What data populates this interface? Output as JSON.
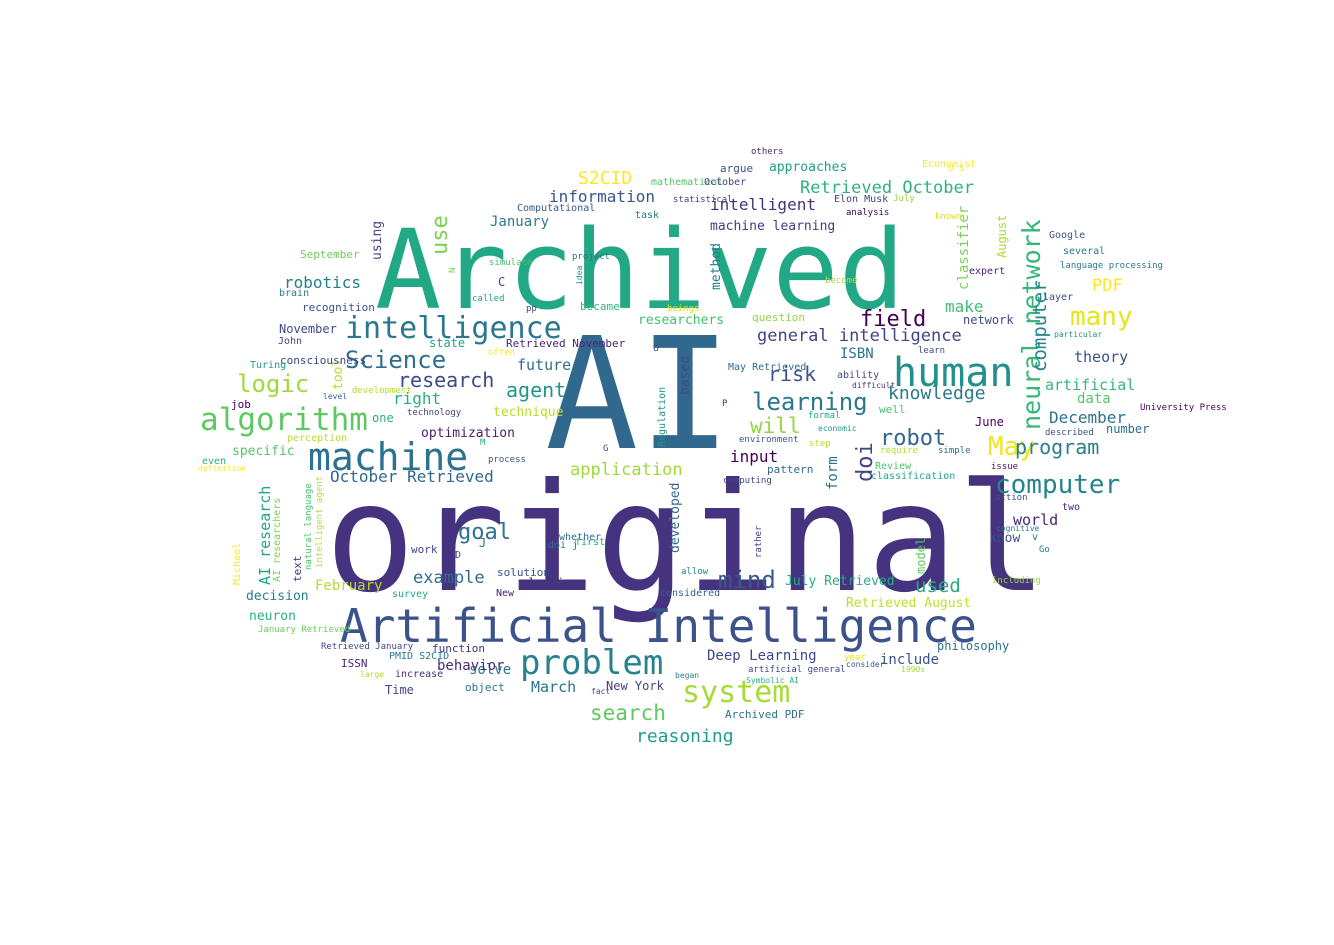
{
  "palette": [
    "#440154",
    "#46327e",
    "#365c8d",
    "#277f8e",
    "#1fa187",
    "#4ac16d",
    "#a0da39",
    "#fde725"
  ],
  "words": [
    {
      "text": "original",
      "color": "#46337f"
    },
    {
      "text": "AI",
      "color": "#31688e"
    },
    {
      "text": "Archived",
      "color": "#22a884"
    },
    {
      "text": "Artificial Intelligence",
      "color": "#3b528b"
    },
    {
      "text": "human",
      "color": "#21918c"
    },
    {
      "text": "machine",
      "color": "#2c728e"
    },
    {
      "text": "intelligence",
      "color": "#2a788e"
    },
    {
      "text": "algorithm",
      "color": "#5ec962"
    },
    {
      "text": "problem",
      "color": "#26828e"
    },
    {
      "text": "system",
      "color": "#a5db36"
    },
    {
      "text": "neural network",
      "color": "#35b779"
    },
    {
      "text": "computer",
      "color": "#25848e"
    },
    {
      "text": "many",
      "color": "#e7e419"
    },
    {
      "text": "logic",
      "color": "#a0da39"
    },
    {
      "text": "learning",
      "color": "#2a788e"
    },
    {
      "text": "Science",
      "color": "#2d708e"
    },
    {
      "text": "robot",
      "color": "#31668e"
    },
    {
      "text": "May",
      "color": "#f1e51d"
    },
    {
      "text": "research",
      "color": "#3e4989"
    },
    {
      "text": "mind",
      "color": "#38598c"
    },
    {
      "text": "goal",
      "color": "#2c738e"
    },
    {
      "text": "field",
      "color": "#440154"
    },
    {
      "text": "use",
      "color": "#7ad151"
    },
    {
      "text": "search",
      "color": "#5ec962"
    },
    {
      "text": "doi",
      "color": "#414487"
    },
    {
      "text": "will",
      "color": "#8fd744"
    },
    {
      "text": "program",
      "color": "#27808e"
    },
    {
      "text": "agent",
      "color": "#1f968b"
    },
    {
      "text": "S2CID",
      "color": "#fde725"
    },
    {
      "text": "robotics",
      "color": "#277f8e"
    },
    {
      "text": "risk",
      "color": "#3b528b"
    },
    {
      "text": "knowledge",
      "color": "#2a788e"
    },
    {
      "text": "October Retrieved",
      "color": "#31688e"
    },
    {
      "text": "reasoning",
      "color": "#1f9e89"
    },
    {
      "text": "Retrieved October",
      "color": "#2db27d"
    },
    {
      "text": "intelligent",
      "color": "#46327e"
    },
    {
      "text": "general intelligence",
      "color": "#414487"
    },
    {
      "text": "information",
      "color": "#39568c"
    },
    {
      "text": "example",
      "color": "#306a8e"
    },
    {
      "text": "PDF",
      "color": "#fde725"
    },
    {
      "text": "application",
      "color": "#a0da39"
    },
    {
      "text": "used",
      "color": "#27ad81"
    },
    {
      "text": "December",
      "color": "#2d718e"
    },
    {
      "text": "computer",
      "color": "#25848e"
    },
    {
      "text": "AI research",
      "color": "#20a386"
    },
    {
      "text": "make",
      "color": "#3fbc73"
    },
    {
      "text": "artificial",
      "color": "#35b779"
    },
    {
      "text": "input",
      "color": "#440154"
    },
    {
      "text": "right",
      "color": "#29af7f"
    },
    {
      "text": "future",
      "color": "#2e6f8e"
    },
    {
      "text": "classifier",
      "color": "#7ad151"
    },
    {
      "text": "ISBN",
      "color": "#2c728e"
    },
    {
      "text": "January",
      "color": "#287d8e"
    },
    {
      "text": "March",
      "color": "#2c738e"
    },
    {
      "text": "Deep Learning",
      "color": "#404688"
    },
    {
      "text": "theory",
      "color": "#3b528b"
    },
    {
      "text": "solve",
      "color": "#2b748e"
    },
    {
      "text": "world",
      "color": "#482576"
    },
    {
      "text": "machine learning",
      "color": "#443983"
    },
    {
      "text": "February",
      "color": "#b2dd2d"
    },
    {
      "text": "New York",
      "color": "#424086"
    },
    {
      "text": "form",
      "color": "#2e6d8e"
    },
    {
      "text": "data",
      "color": "#54c568"
    },
    {
      "text": "July Retrieved",
      "color": "#26ad81"
    },
    {
      "text": "decision",
      "color": "#277f8e"
    },
    {
      "text": "Retrieved August",
      "color": "#c2df23"
    },
    {
      "text": "tool",
      "color": "#b5de2b"
    },
    {
      "text": "based",
      "color": "#3e4a89"
    },
    {
      "text": "developed",
      "color": "#32658e"
    },
    {
      "text": "method",
      "color": "#2a7b8e"
    },
    {
      "text": "optimization",
      "color": "#482173"
    },
    {
      "text": "August",
      "color": "#a8db34"
    },
    {
      "text": "researchers",
      "color": "#44bf70"
    },
    {
      "text": "neuron",
      "color": "#2ab07f"
    },
    {
      "text": "using",
      "color": "#414487"
    },
    {
      "text": "know",
      "color": "#3d4d8a"
    },
    {
      "text": "November",
      "color": "#3e4989"
    },
    {
      "text": "specific",
      "color": "#52c569"
    },
    {
      "text": "state",
      "color": "#1fa187"
    },
    {
      "text": "June",
      "color": "#440154"
    },
    {
      "text": "number",
      "color": "#2e6e8e"
    },
    {
      "text": "network",
      "color": "#3e4a89"
    },
    {
      "text": "approaches",
      "color": "#1fa088"
    },
    {
      "text": "technique",
      "color": "#b8de29"
    },
    {
      "text": "include",
      "color": "#3b528b"
    },
    {
      "text": "job",
      "color": "#440154"
    },
    {
      "text": "behavior",
      "color": "#482979"
    },
    {
      "text": "C",
      "color": "#414487"
    },
    {
      "text": "one",
      "color": "#29af7f"
    },
    {
      "text": "Time",
      "color": "#404588"
    },
    {
      "text": "philosophy",
      "color": "#2c728e"
    },
    {
      "text": "argue",
      "color": "#3b518b"
    },
    {
      "text": "model",
      "color": "#5ec962"
    },
    {
      "text": "Archived PDF",
      "color": "#2d708e"
    },
    {
      "text": "function",
      "color": "#46307e"
    },
    {
      "text": "planning",
      "color": "#46327e"
    },
    {
      "text": "solution",
      "color": "#3b528b"
    },
    {
      "text": "object",
      "color": "#2d708e"
    },
    {
      "text": "text",
      "color": "#453781"
    },
    {
      "text": "question",
      "color": "#8fd744"
    },
    {
      "text": "Retrieved November",
      "color": "#482475"
    },
    {
      "text": "consciousness",
      "color": "#3f4788"
    },
    {
      "text": "recognition",
      "color": "#3b518b"
    },
    {
      "text": "brain",
      "color": "#2a788e"
    },
    {
      "text": "John",
      "color": "#3e4989"
    },
    {
      "text": "perception",
      "color": "#b5de2b"
    },
    {
      "text": "September",
      "color": "#6ccd5a"
    },
    {
      "text": "mathematical",
      "color": "#54c568"
    },
    {
      "text": "October",
      "color": "#414487"
    },
    {
      "text": "task",
      "color": "#2d708e"
    },
    {
      "text": "Computational",
      "color": "#39558c"
    },
    {
      "text": "Google",
      "color": "#3b528b"
    },
    {
      "text": "several",
      "color": "#2a788e"
    },
    {
      "text": "layer",
      "color": "#3e4a89"
    },
    {
      "text": "Turing",
      "color": "#1f9a8a"
    },
    {
      "text": "May Retrieved",
      "color": "#306a8e"
    },
    {
      "text": "even",
      "color": "#2ab07f"
    },
    {
      "text": "work",
      "color": "#3f4889"
    },
    {
      "text": "ISSN",
      "color": "#482576"
    },
    {
      "text": "J",
      "color": "#2e6f8e"
    },
    {
      "text": "D",
      "color": "#404588"
    },
    {
      "text": "New",
      "color": "#482475"
    },
    {
      "text": "whether",
      "color": "#2c738e"
    },
    {
      "text": "first",
      "color": "#25ab82"
    },
    {
      "text": "doi j",
      "color": "#2c738e"
    },
    {
      "text": "survey",
      "color": "#22a884"
    },
    {
      "text": "Michael",
      "color": "#fde725"
    },
    {
      "text": "AI researchers",
      "color": "#7ad151"
    },
    {
      "text": "natural language",
      "color": "#4ac16d"
    },
    {
      "text": "intelligent agent",
      "color": "#bddf26"
    },
    {
      "text": "January Retrieved",
      "color": "#6ccd5a"
    },
    {
      "text": "Retrieved January",
      "color": "#3e4a89"
    },
    {
      "text": "PMID S2CID",
      "color": "#2a788e"
    },
    {
      "text": "increase",
      "color": "#46307e"
    },
    {
      "text": "large",
      "color": "#b2dd2d"
    },
    {
      "text": "fact",
      "color": "#3b528b"
    },
    {
      "text": "began",
      "color": "#25858e"
    },
    {
      "text": "year",
      "color": "#e5e419"
    },
    {
      "text": "consider",
      "color": "#3b528b"
    },
    {
      "text": "1990s",
      "color": "#a8db34"
    },
    {
      "text": "allow",
      "color": "#27808e"
    },
    {
      "text": "considered",
      "color": "#31668e"
    },
    {
      "text": "rather",
      "color": "#453781"
    },
    {
      "text": "artificial general",
      "color": "#404688"
    },
    {
      "text": "Symbolic AI",
      "color": "#2db27d"
    },
    {
      "text": "v",
      "color": "#2d708e"
    },
    {
      "text": "Go",
      "color": "#2a788e"
    },
    {
      "text": "cognitive",
      "color": "#2d718e"
    },
    {
      "text": "action",
      "color": "#3b528b"
    },
    {
      "text": "two",
      "color": "#482677"
    },
    {
      "text": "issue",
      "color": "#471365"
    },
    {
      "text": "including",
      "color": "#9bd93c"
    },
    {
      "text": "classification",
      "color": "#20a486"
    },
    {
      "text": "Review",
      "color": "#4ac16d"
    },
    {
      "text": "computing",
      "color": "#3f4788"
    },
    {
      "text": "pattern",
      "color": "#306a8e"
    },
    {
      "text": "environment",
      "color": "#3b528b"
    },
    {
      "text": "step",
      "color": "#b8de29"
    },
    {
      "text": "economic",
      "color": "#1f9a8a"
    },
    {
      "text": "formal",
      "color": "#22a884"
    },
    {
      "text": "well",
      "color": "#44bf70"
    },
    {
      "text": "ability",
      "color": "#3e4989"
    },
    {
      "text": "difficult",
      "color": "#46337f"
    },
    {
      "text": "require",
      "color": "#b2dd2d"
    },
    {
      "text": "simple",
      "color": "#2d708e"
    },
    {
      "text": "P",
      "color": "#482878"
    },
    {
      "text": "U",
      "color": "#3b528b"
    },
    {
      "text": "G",
      "color": "#404588"
    },
    {
      "text": "M",
      "color": "#2ab07f"
    },
    {
      "text": "Regulation",
      "color": "#21918c"
    },
    {
      "text": "technology",
      "color": "#414487"
    },
    {
      "text": "level",
      "color": "#32658e"
    },
    {
      "text": "development",
      "color": "#b5de2b"
    },
    {
      "text": "definition",
      "color": "#fde725"
    },
    {
      "text": "process",
      "color": "#3b528b"
    },
    {
      "text": "often",
      "color": "#fde725"
    },
    {
      "text": "called",
      "color": "#1fa088"
    },
    {
      "text": "pp",
      "color": "#414487"
    },
    {
      "text": "became",
      "color": "#35b779"
    },
    {
      "text": "beings",
      "color": "#dae319"
    },
    {
      "text": "become",
      "color": "#a5db36"
    },
    {
      "text": "idea",
      "color": "#21918c"
    },
    {
      "text": "project",
      "color": "#2a788e"
    },
    {
      "text": "simulate",
      "color": "#4ac16d"
    },
    {
      "text": "N",
      "color": "#7ad151"
    },
    {
      "text": "others",
      "color": "#482677"
    },
    {
      "text": "Elon Musk",
      "color": "#414487"
    },
    {
      "text": "statistical",
      "color": "#414487"
    },
    {
      "text": "analysis",
      "color": "#440154"
    },
    {
      "text": "known",
      "color": "#dae319"
    },
    {
      "text": "Economist",
      "color": "#fde725"
    },
    {
      "text": "U S",
      "color": "#fde725"
    },
    {
      "text": "July",
      "color": "#95d840"
    },
    {
      "text": "expert",
      "color": "#482475"
    },
    {
      "text": "language processing",
      "color": "#2a788e"
    },
    {
      "text": "learn",
      "color": "#3e4a89"
    },
    {
      "text": "particular",
      "color": "#21918c"
    },
    {
      "text": "University Press",
      "color": "#440154"
    },
    {
      "text": "described",
      "color": "#3b528b"
    },
    {
      "text": "game",
      "color": "#2a788e"
    },
    {
      "text": "Bibcode",
      "color": "#fde725"
    }
  ]
}
